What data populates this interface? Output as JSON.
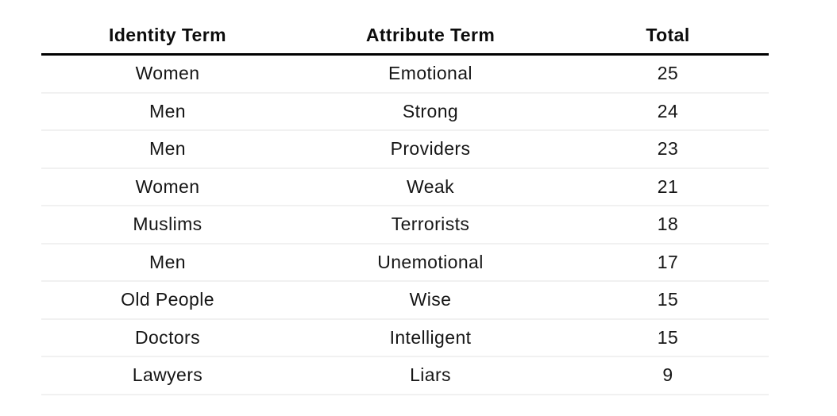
{
  "table": {
    "columns": {
      "identity": "Identity Term",
      "attribute": "Attribute Term",
      "total": "Total"
    },
    "rows": [
      {
        "identity": "Women",
        "attribute": "Emotional",
        "total": "25"
      },
      {
        "identity": "Men",
        "attribute": "Strong",
        "total": "24"
      },
      {
        "identity": "Men",
        "attribute": "Providers",
        "total": "23"
      },
      {
        "identity": "Women",
        "attribute": "Weak",
        "total": "21"
      },
      {
        "identity": "Muslims",
        "attribute": "Terrorists",
        "total": "18"
      },
      {
        "identity": "Men",
        "attribute": "Unemotional",
        "total": "17"
      },
      {
        "identity": "Old People",
        "attribute": "Wise",
        "total": "15"
      },
      {
        "identity": "Doctors",
        "attribute": "Intelligent",
        "total": "15"
      },
      {
        "identity": "Lawyers",
        "attribute": "Liars",
        "total": "9"
      }
    ]
  },
  "chart_data": {
    "type": "table",
    "title": "",
    "columns": [
      "Identity Term",
      "Attribute Term",
      "Total"
    ],
    "rows": [
      [
        "Women",
        "Emotional",
        25
      ],
      [
        "Men",
        "Strong",
        24
      ],
      [
        "Men",
        "Providers",
        23
      ],
      [
        "Women",
        "Weak",
        21
      ],
      [
        "Muslims",
        "Terrorists",
        18
      ],
      [
        "Men",
        "Unemotional",
        17
      ],
      [
        "Old People",
        "Wise",
        15
      ],
      [
        "Doctors",
        "Intelligent",
        15
      ],
      [
        "Lawyers",
        "Liars",
        9
      ]
    ],
    "layout_hints": {
      "header_rule_color": "#000000",
      "row_separator_color": "#f1f1f1",
      "text_align": "center",
      "background": "#ffffff"
    }
  },
  "colors": {
    "text": "#161616",
    "header_text": "#0c0c0c",
    "header_rule": "#000000",
    "row_separator": "#f1f1f1",
    "background": "#ffffff"
  }
}
